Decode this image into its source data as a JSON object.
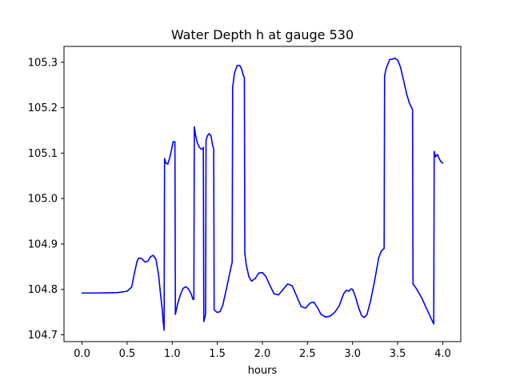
{
  "chart_data": {
    "type": "line",
    "title": "Water Depth h at gauge 530",
    "xlabel": "hours",
    "ylabel": "",
    "xlim": [
      -0.2,
      4.2
    ],
    "ylim": [
      104.685,
      105.335
    ],
    "xticks": [
      0.0,
      0.5,
      1.0,
      1.5,
      2.0,
      2.5,
      3.0,
      3.5,
      4.0
    ],
    "xtick_labels": [
      "0.0",
      "0.5",
      "1.0",
      "1.5",
      "2.0",
      "2.5",
      "3.0",
      "3.5",
      "4.0"
    ],
    "yticks": [
      104.7,
      104.8,
      104.9,
      105.0,
      105.1,
      105.2,
      105.3
    ],
    "ytick_labels": [
      "104.7",
      "104.8",
      "104.9",
      "105.0",
      "105.1",
      "105.2",
      "105.3"
    ],
    "grid": false,
    "legend": "none",
    "series": [
      {
        "color": "#0000ff",
        "x": [
          0.0,
          0.2,
          0.4,
          0.5,
          0.55,
          0.58,
          0.61,
          0.63,
          0.66,
          0.7,
          0.73,
          0.76,
          0.79,
          0.82,
          0.85,
          0.87,
          0.89,
          0.9,
          0.91,
          0.915,
          0.93,
          0.95,
          0.97,
          0.99,
          1.01,
          1.03,
          1.035,
          1.06,
          1.09,
          1.12,
          1.15,
          1.18,
          1.21,
          1.23,
          1.24,
          1.245,
          1.26,
          1.28,
          1.3,
          1.32,
          1.34,
          1.345,
          1.35,
          1.37,
          1.375,
          1.39,
          1.41,
          1.43,
          1.45,
          1.46,
          1.465,
          1.5,
          1.53,
          1.56,
          1.6,
          1.64,
          1.665,
          1.67,
          1.69,
          1.72,
          1.75,
          1.77,
          1.79,
          1.8,
          1.805,
          1.82,
          1.85,
          1.88,
          1.92,
          1.96,
          2.0,
          2.04,
          2.08,
          2.13,
          2.18,
          2.23,
          2.28,
          2.33,
          2.38,
          2.43,
          2.48,
          2.53,
          2.57,
          2.61,
          2.65,
          2.7,
          2.75,
          2.8,
          2.85,
          2.9,
          2.93,
          2.96,
          2.98,
          3.0,
          3.03,
          3.07,
          3.1,
          3.13,
          3.16,
          3.2,
          3.25,
          3.29,
          3.32,
          3.35,
          3.355,
          3.37,
          3.39,
          3.41,
          3.44,
          3.47,
          3.5,
          3.53,
          3.56,
          3.6,
          3.63,
          3.66,
          3.665,
          3.67,
          3.7,
          3.73,
          3.77,
          3.81,
          3.85,
          3.88,
          3.9,
          3.905,
          3.92,
          3.94,
          3.96,
          3.98,
          4.0
        ],
        "y": [
          104.792,
          104.792,
          104.793,
          104.796,
          104.805,
          104.835,
          104.862,
          104.869,
          104.868,
          104.86,
          104.862,
          104.872,
          104.875,
          104.866,
          104.83,
          104.79,
          104.755,
          104.728,
          104.71,
          105.088,
          105.078,
          105.076,
          105.088,
          105.105,
          105.125,
          105.125,
          104.745,
          104.768,
          104.788,
          104.802,
          104.806,
          104.801,
          104.79,
          104.778,
          104.778,
          105.158,
          105.138,
          105.122,
          105.113,
          105.109,
          105.109,
          105.113,
          104.729,
          104.745,
          105.128,
          105.138,
          105.143,
          105.138,
          105.115,
          105.11,
          104.755,
          104.749,
          104.751,
          104.765,
          104.8,
          104.838,
          104.86,
          105.245,
          105.276,
          105.293,
          105.293,
          105.285,
          105.27,
          105.267,
          104.88,
          104.855,
          104.828,
          104.818,
          104.824,
          104.836,
          104.837,
          104.828,
          104.81,
          104.79,
          104.788,
          104.8,
          104.812,
          104.808,
          104.785,
          104.762,
          104.759,
          104.77,
          104.772,
          104.76,
          104.745,
          104.739,
          104.741,
          104.749,
          104.763,
          104.79,
          104.798,
          104.796,
          104.801,
          104.8,
          104.785,
          104.758,
          104.742,
          104.738,
          104.745,
          104.775,
          104.825,
          104.87,
          104.885,
          104.89,
          105.27,
          105.285,
          105.295,
          105.306,
          105.307,
          105.309,
          105.305,
          105.29,
          105.265,
          105.23,
          105.21,
          105.198,
          105.195,
          104.812,
          104.804,
          104.794,
          104.78,
          104.762,
          104.745,
          104.732,
          104.724,
          105.104,
          105.092,
          105.097,
          105.088,
          105.081,
          105.078
        ]
      }
    ]
  }
}
